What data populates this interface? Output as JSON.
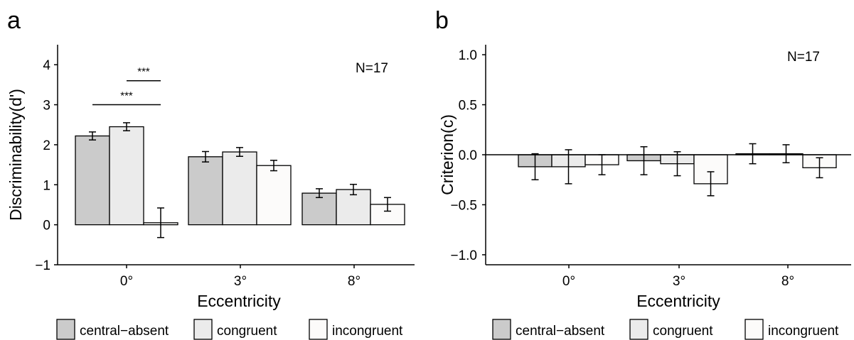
{
  "colors": {
    "central-absent": "#cbcbcb",
    "congruent": "#ebebeb",
    "incongruent": "#fcfbfa",
    "stroke": "#000000"
  },
  "legend": {
    "items": [
      {
        "key": "central-absent",
        "label": "central−absent"
      },
      {
        "key": "congruent",
        "label": "congruent"
      },
      {
        "key": "incongruent",
        "label": "incongruent"
      }
    ]
  },
  "chart_data": [
    {
      "panel": "a",
      "type": "bar",
      "xlabel": "Eccentricity",
      "ylabel": "Discriminability(d')",
      "annotation": "N=17",
      "categories": [
        "0°",
        "3°",
        "8°"
      ],
      "ylim": [
        -1,
        4.5
      ],
      "yticks": [
        -1,
        0,
        1,
        2,
        3,
        4
      ],
      "ytick_labels": [
        "−1",
        "0",
        "1",
        "2",
        "3",
        "4"
      ],
      "grid": false,
      "legend_position": "bottom",
      "series": [
        {
          "name": "central-absent",
          "values": [
            2.22,
            1.7,
            0.79
          ],
          "errors": [
            0.1,
            0.13,
            0.11
          ]
        },
        {
          "name": "congruent",
          "values": [
            2.45,
            1.82,
            0.88
          ],
          "errors": [
            0.1,
            0.11,
            0.13
          ]
        },
        {
          "name": "incongruent",
          "values": [
            0.05,
            1.48,
            0.51
          ],
          "errors": [
            0.37,
            0.13,
            0.17
          ]
        }
      ],
      "significance": [
        {
          "label": "***",
          "from": 1,
          "to": 2,
          "y": 3.6
        },
        {
          "label": "***",
          "from": 0,
          "to": 2,
          "y": 3.0
        }
      ]
    },
    {
      "panel": "b",
      "type": "bar",
      "xlabel": "Eccentricity",
      "ylabel": "Criterion(c)",
      "annotation": "N=17",
      "categories": [
        "0°",
        "3°",
        "8°"
      ],
      "ylim": [
        -1.1,
        1.1
      ],
      "yticks": [
        -1.0,
        -0.5,
        0.0,
        0.5,
        1.0
      ],
      "ytick_labels": [
        "−1.0",
        "−0.5",
        "0.0",
        "0.5",
        "1.0"
      ],
      "grid": false,
      "legend_position": "bottom",
      "series": [
        {
          "name": "central-absent",
          "values": [
            -0.12,
            -0.06,
            0.01
          ],
          "errors": [
            0.13,
            0.14,
            0.1
          ]
        },
        {
          "name": "congruent",
          "values": [
            -0.12,
            -0.09,
            0.01
          ],
          "errors": [
            0.17,
            0.12,
            0.09
          ]
        },
        {
          "name": "incongruent",
          "values": [
            -0.1,
            -0.29,
            -0.13
          ],
          "errors": [
            0.1,
            0.12,
            0.1
          ]
        }
      ]
    }
  ]
}
